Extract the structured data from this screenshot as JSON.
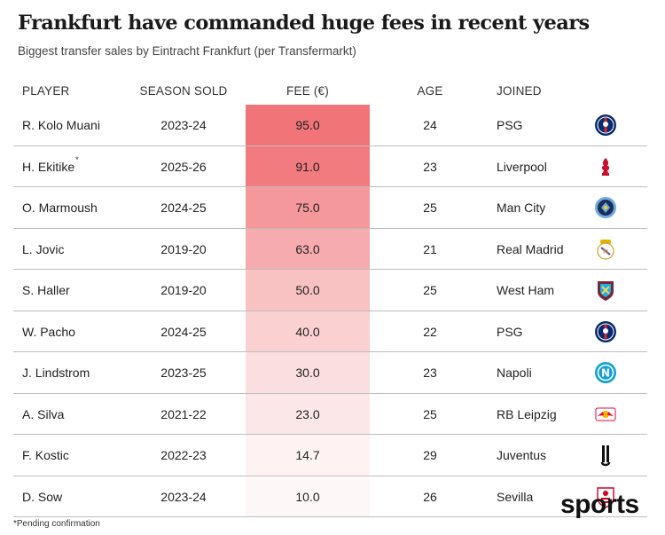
{
  "title": "Frankfurt have commanded huge fees in recent years",
  "subtitle": "Biggest transfer sales by Eintracht Frankfurt (per Transfermarkt)",
  "columns": {
    "player": "PLAYER",
    "season": "SEASON SOLD",
    "fee": "FEE (€)",
    "age": "AGE",
    "joined": "JOINED"
  },
  "chart_data": {
    "type": "table",
    "title": "Frankfurt have commanded huge fees in recent years",
    "subtitle": "Biggest transfer sales by Eintracht Frankfurt (per Transfermarkt)",
    "fee_max": 95.0,
    "rows": [
      {
        "player": "R. Kolo Muani",
        "season": "2023-24",
        "fee": "95.0",
        "fee_value": 95.0,
        "age": "24",
        "club": "PSG",
        "logo": "psg-logo"
      },
      {
        "player": "H. Ekitike",
        "marker": "*",
        "season": "2025-26",
        "fee": "91.0",
        "fee_value": 91.0,
        "age": "23",
        "club": "Liverpool",
        "logo": "liverpool-logo"
      },
      {
        "player": "O. Marmoush",
        "season": "2024-25",
        "fee": "75.0",
        "fee_value": 75.0,
        "age": "25",
        "club": "Man City",
        "logo": "man-city-logo"
      },
      {
        "player": "L. Jovic",
        "season": "2019-20",
        "fee": "63.0",
        "fee_value": 63.0,
        "age": "21",
        "club": "Real Madrid",
        "logo": "real-madrid-logo"
      },
      {
        "player": "S. Haller",
        "season": "2019-20",
        "fee": "50.0",
        "fee_value": 50.0,
        "age": "25",
        "club": "West Ham",
        "logo": "west-ham-logo"
      },
      {
        "player": "W. Pacho",
        "season": "2024-25",
        "fee": "40.0",
        "fee_value": 40.0,
        "age": "22",
        "club": "PSG",
        "logo": "psg-logo"
      },
      {
        "player": "J. Lindstrom",
        "season": "2023-25",
        "fee": "30.0",
        "fee_value": 30.0,
        "age": "23",
        "club": "Napoli",
        "logo": "napoli-logo"
      },
      {
        "player": "A. Silva",
        "season": "2021-22",
        "fee": "23.0",
        "fee_value": 23.0,
        "age": "25",
        "club": "RB Leipzig",
        "logo": "rb-leipzig-logo"
      },
      {
        "player": "F. Kostic",
        "season": "2022-23",
        "fee": "14.7",
        "fee_value": 14.7,
        "age": "29",
        "club": "Juventus",
        "logo": "juventus-logo"
      },
      {
        "player": "D. Sow",
        "season": "2023-24",
        "fee": "10.0",
        "fee_value": 10.0,
        "age": "26",
        "club": "Sevilla",
        "logo": "sevilla-logo"
      }
    ]
  },
  "colors": {
    "fee_max": "#f07478",
    "fee_min": "#ffffff",
    "separator": "#bdbdbd"
  },
  "footnote": "*Pending confirmation",
  "brand": "sports"
}
